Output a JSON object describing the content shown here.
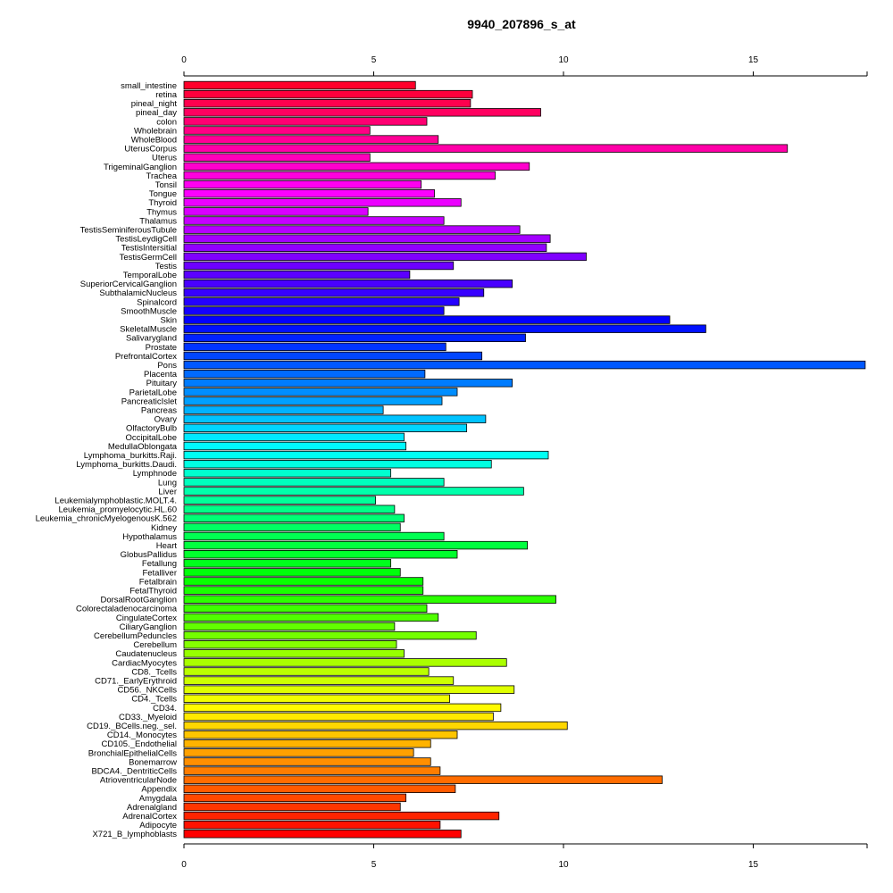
{
  "chart_data": {
    "type": "bar",
    "orientation": "horizontal",
    "title": "9940_207896_s_at",
    "xlabel": "",
    "ylabel": "",
    "xlim": [
      0,
      18
    ],
    "xticks": [
      0,
      5,
      10,
      15
    ],
    "axes": "top-and-bottom",
    "grid": false,
    "legend": "none",
    "colors": {
      "scale": "rainbow",
      "border": "#000000"
    },
    "categories": [
      "small_intestine",
      "retina",
      "pineal_night",
      "pineal_day",
      "colon",
      "Wholebrain",
      "WholeBlood",
      "UterusCorpus",
      "Uterus",
      "TrigeminalGanglion",
      "Trachea",
      "Tonsil",
      "Tongue",
      "Thyroid",
      "Thymus",
      "Thalamus",
      "TestisSeminiferousTubule",
      "TestisLeydigCell",
      "TestisIntersitial",
      "TestisGermCell",
      "Testis",
      "TemporalLobe",
      "SuperiorCervicalGanglion",
      "SubthalamicNucleus",
      "Spinalcord",
      "SmoothMuscle",
      "Skin",
      "SkeletalMuscle",
      "Salivarygland",
      "Prostate",
      "PrefrontalCortex",
      "Pons",
      "Placenta",
      "Pituitary",
      "ParietalLobe",
      "PancreaticIslet",
      "Pancreas",
      "Ovary",
      "OlfactoryBulb",
      "OccipitalLobe",
      "MedullaOblongata",
      "Lymphoma_burkitts.Raji.",
      "Lymphoma_burkitts.Daudi.",
      "Lymphnode",
      "Lung",
      "Liver",
      "Leukemialymphoblastic.MOLT.4.",
      "Leukemia_promyelocytic.HL.60",
      "Leukemia_chronicMyelogenousK.562",
      "Kidney",
      "Hypothalamus",
      "Heart",
      "GlobusPallidus",
      "Fetallung",
      "Fetalliver",
      "Fetalbrain",
      "FetalThyroid",
      "DorsalRootGanglion",
      "Colorectaladenocarcinoma",
      "CingulateCortex",
      "CiliaryGanglion",
      "CerebellumPeduncles",
      "Cerebellum",
      "Caudatenucleus",
      "CardiacMyocytes",
      "CD8._Tcells",
      "CD71._EarlyErythroid",
      "CD56._NKCells",
      "CD4._Tcells",
      "CD34.",
      "CD33._Myeloid",
      "CD19._BCells.neg._sel.",
      "CD14._Monocytes",
      "CD105._Endothelial",
      "BronchialEpithelialCells",
      "Bonemarrow",
      "BDCA4._DentriticCells",
      "AtrioventricularNode",
      "Appendix",
      "Amygdala",
      "Adrenalgland",
      "AdrenalCortex",
      "Adipocyte",
      "X721_B_lymphoblasts"
    ],
    "values": [
      6.1,
      7.6,
      7.55,
      9.4,
      6.4,
      4.9,
      6.7,
      15.9,
      4.9,
      9.1,
      8.2,
      6.25,
      6.6,
      7.3,
      4.85,
      6.85,
      8.85,
      9.65,
      9.55,
      10.6,
      7.1,
      5.95,
      8.65,
      7.9,
      7.25,
      6.85,
      12.8,
      13.75,
      9.0,
      6.9,
      7.85,
      17.95,
      6.35,
      8.65,
      7.2,
      6.8,
      5.25,
      7.95,
      7.45,
      5.8,
      5.85,
      9.6,
      8.1,
      5.45,
      6.85,
      8.95,
      5.05,
      5.55,
      5.8,
      5.7,
      6.85,
      9.05,
      7.2,
      5.45,
      5.7,
      6.3,
      6.3,
      9.8,
      6.4,
      6.7,
      5.55,
      7.7,
      5.6,
      5.8,
      8.5,
      6.45,
      7.1,
      8.7,
      7.0,
      8.35,
      8.15,
      10.1,
      7.2,
      6.5,
      6.05,
      6.5,
      6.75,
      12.6,
      7.15,
      5.85,
      5.7,
      8.3,
      6.75,
      7.3
    ]
  }
}
